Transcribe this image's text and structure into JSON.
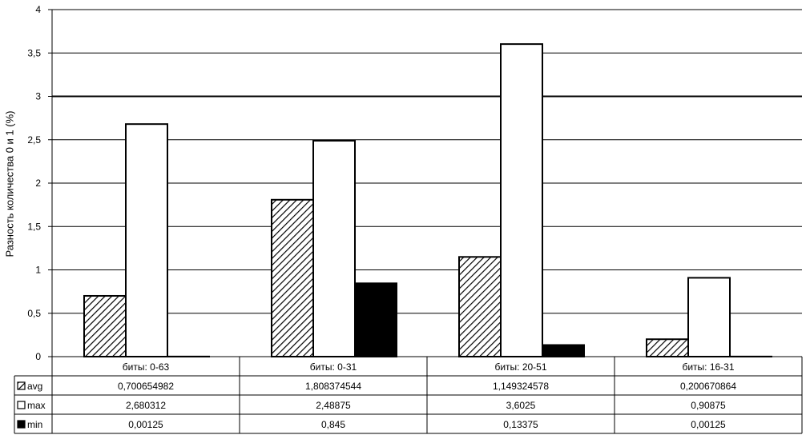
{
  "chart_data": {
    "type": "bar",
    "title": "",
    "xlabel": "",
    "ylabel": "Разность количества 0 и 1 (%)",
    "ylim": [
      0,
      4
    ],
    "yticks": [
      "0",
      "0,5",
      "1",
      "1,5",
      "2",
      "2,5",
      "3",
      "3,5",
      "4"
    ],
    "grid": true,
    "legend": "data-table",
    "categories": [
      "биты: 0-63",
      "биты: 0-31",
      "биты: 20-51",
      "биты: 16-31"
    ],
    "series": [
      {
        "name": "avg",
        "fill": "hatch",
        "values": [
          0.700654982,
          1.808374544,
          1.149324578,
          0.200670864
        ],
        "labels": [
          "0,700654982",
          "1,808374544",
          "1,149324578",
          "0,200670864"
        ]
      },
      {
        "name": "max",
        "fill": "white",
        "values": [
          2.680312,
          2.48875,
          3.6025,
          0.90875
        ],
        "labels": [
          "2,680312",
          "2,48875",
          "3,6025",
          "0,90875"
        ]
      },
      {
        "name": "min",
        "fill": "black",
        "values": [
          0.00125,
          0.845,
          0.13375,
          0.00125
        ],
        "labels": [
          "0,00125",
          "0,845",
          "0,13375",
          "0,00125"
        ]
      }
    ],
    "colors": {
      "axis": "#000000",
      "grid": "#000000",
      "bar_stroke": "#000000",
      "min_fill": "#000000",
      "max_fill": "#ffffff"
    }
  }
}
